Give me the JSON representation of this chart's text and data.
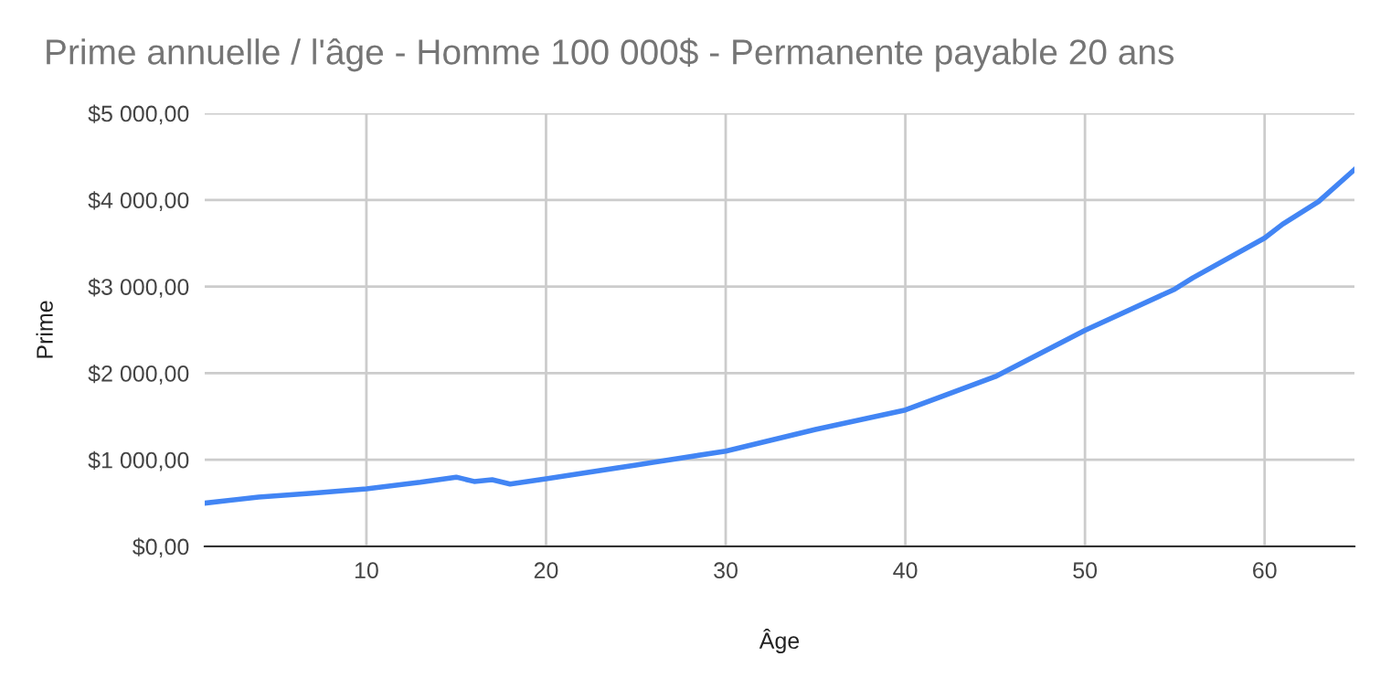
{
  "chart_data": {
    "type": "line",
    "title": "Prime annuelle / l'âge - Homme 100 000$ - Permanente payable 20 ans",
    "xlabel": "Âge",
    "ylabel": "Prime",
    "x": [
      1,
      4,
      7,
      10,
      13,
      15,
      16,
      17,
      18,
      20,
      25,
      30,
      35,
      40,
      45,
      50,
      55,
      56,
      60,
      61,
      63,
      65
    ],
    "series": [
      {
        "color": "#4285f4",
        "values": [
          500,
          570,
          615,
          665,
          740,
          800,
          750,
          770,
          720,
          780,
          940,
          1100,
          1350,
          1575,
          1960,
          2495,
          2970,
          3100,
          3560,
          3720,
          3980,
          4350
        ]
      }
    ],
    "xlim": [
      1,
      65
    ],
    "xticks": [
      10,
      20,
      30,
      40,
      50,
      60
    ],
    "ylim": [
      0,
      5000
    ],
    "yticks": [
      {
        "value": 0,
        "label": "$0,00"
      },
      {
        "value": 1000,
        "label": "$1 000,00"
      },
      {
        "value": 2000,
        "label": "$2 000,00"
      },
      {
        "value": 3000,
        "label": "$3 000,00"
      },
      {
        "value": 4000,
        "label": "$4 000,00"
      },
      {
        "value": 5000,
        "label": "$5 000,00"
      }
    ],
    "grid": true,
    "legend": false,
    "marker": "none",
    "line_style": "solid"
  }
}
